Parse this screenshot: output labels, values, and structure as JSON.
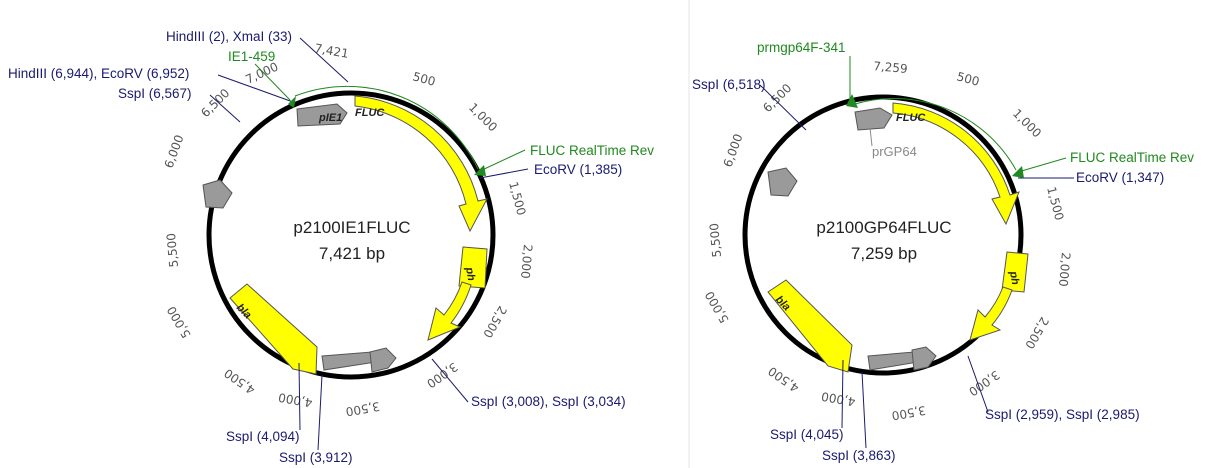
{
  "maps": [
    {
      "name": "p2100IE1FLUC",
      "size": "7,421 bp",
      "ticks": [
        "500",
        "1,000",
        "1,500",
        "2,000",
        "2,500",
        "3,000",
        "3,500",
        "4,000",
        "4,500",
        "5,000",
        "5,500",
        "6,000",
        "6,500",
        "7,000",
        "7,421"
      ],
      "features": [
        {
          "label": "pIE1",
          "type": "promoter"
        },
        {
          "label": "FLUC",
          "type": "gene"
        },
        {
          "label": "ph",
          "type": "gene"
        },
        {
          "label": "bla",
          "type": "gene"
        }
      ],
      "primers": [
        "IE1-459",
        "FLUC RealTime Rev"
      ],
      "sites": [
        "HindIII (2), XmaI (33)",
        "HindIII (6,944), EcoRV (6,952)",
        "SspI (6,567)",
        "EcoRV (1,385)",
        "SspI (3,008), SspI (3,034)",
        "SspI (4,094)",
        "SspI (3,912)"
      ]
    },
    {
      "name": "p2100GP64FLUC",
      "size": "7,259 bp",
      "ticks": [
        "500",
        "1,000",
        "1,500",
        "2,000",
        "2,500",
        "3,000",
        "3,500",
        "4,000",
        "4,500",
        "5,000",
        "5,500",
        "6,000",
        "6,500",
        "7,259"
      ],
      "features": [
        {
          "label": "FLUC",
          "type": "gene"
        },
        {
          "label": "ph",
          "type": "gene"
        },
        {
          "label": "bla",
          "type": "gene"
        },
        {
          "label": "prGP64",
          "type": "promoter"
        }
      ],
      "primers": [
        "prmgp64F-341",
        "FLUC RealTime Rev"
      ],
      "sites": [
        "SspI (6,518)",
        "EcoRV (1,347)",
        "SspI (2,959), SspI (2,985)",
        "SspI (4,045)",
        "SspI (3,863)"
      ]
    }
  ],
  "colors": {
    "gene": "#ffff00",
    "grey_feature": "#9a9a9a",
    "site_text": "#1a1a6e",
    "primer_text": "#1f8a1f",
    "backbone": "#000000"
  }
}
